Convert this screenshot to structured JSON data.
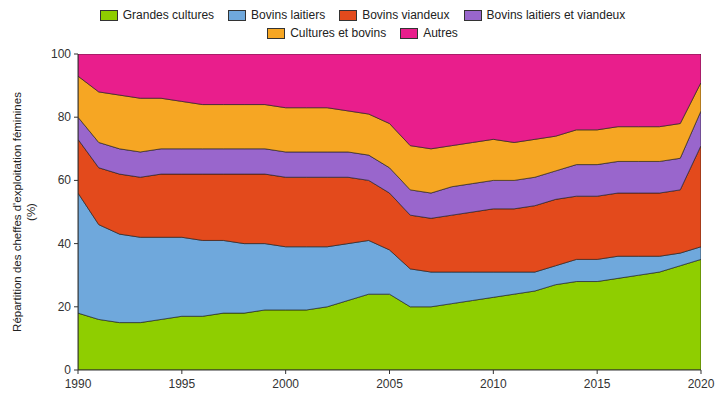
{
  "chart_data": {
    "type": "area",
    "stacked": true,
    "legend": "top",
    "grid": false,
    "ylabel": "Répartition des cheffes d'exploitation féminines\n(%)",
    "x": [
      1990,
      1991,
      1992,
      1993,
      1994,
      1995,
      1996,
      1997,
      1998,
      1999,
      2000,
      2001,
      2002,
      2003,
      2004,
      2005,
      2006,
      2007,
      2008,
      2009,
      2010,
      2011,
      2012,
      2013,
      2014,
      2015,
      2016,
      2017,
      2018,
      2019,
      2020
    ],
    "series": [
      {
        "name": "Grandes cultures",
        "color": "#8fce00",
        "values": [
          18,
          16,
          15,
          15,
          16,
          17,
          17,
          18,
          18,
          19,
          19,
          19,
          20,
          22,
          24,
          24,
          20,
          20,
          21,
          22,
          23,
          24,
          25,
          27,
          28,
          28,
          29,
          30,
          31,
          33,
          35
        ]
      },
      {
        "name": "Bovins laitiers",
        "color": "#6fa8dc",
        "values": [
          38,
          30,
          28,
          27,
          26,
          25,
          24,
          23,
          22,
          21,
          20,
          20,
          19,
          18,
          17,
          14,
          12,
          11,
          10,
          9,
          8,
          7,
          6,
          6,
          7,
          7,
          7,
          6,
          5,
          4,
          4
        ]
      },
      {
        "name": "Bovins viandeux",
        "color": "#e34a1c",
        "values": [
          17,
          18,
          19,
          19,
          20,
          20,
          21,
          21,
          22,
          22,
          22,
          22,
          22,
          21,
          19,
          18,
          17,
          17,
          18,
          19,
          20,
          20,
          21,
          21,
          20,
          20,
          20,
          20,
          20,
          20,
          32
        ]
      },
      {
        "name": "Bovins laitiers et viandeux",
        "color": "#9966cc",
        "values": [
          7,
          8,
          8,
          8,
          8,
          8,
          8,
          8,
          8,
          8,
          8,
          8,
          8,
          8,
          8,
          8,
          8,
          8,
          9,
          9,
          9,
          9,
          9,
          9,
          10,
          10,
          10,
          10,
          10,
          10,
          11
        ]
      },
      {
        "name": "Cultures et bovins",
        "color": "#f6a623",
        "values": [
          13,
          16,
          17,
          17,
          16,
          15,
          14,
          14,
          14,
          14,
          14,
          14,
          14,
          13,
          13,
          14,
          14,
          14,
          13,
          13,
          13,
          12,
          12,
          11,
          11,
          11,
          11,
          11,
          11,
          11,
          9
        ]
      },
      {
        "name": "Autres",
        "color": "#e91e8c",
        "values": [
          7,
          12,
          13,
          14,
          14,
          15,
          16,
          16,
          16,
          16,
          17,
          17,
          17,
          18,
          19,
          22,
          29,
          30,
          29,
          28,
          27,
          28,
          27,
          26,
          24,
          24,
          23,
          23,
          23,
          22,
          9
        ]
      }
    ],
    "xlim": [
      1990,
      2020
    ],
    "ylim": [
      0,
      100
    ],
    "xticks": [
      1990,
      1995,
      2000,
      2005,
      2010,
      2015,
      2020
    ],
    "yticks": [
      0,
      20,
      40,
      60,
      80,
      100
    ]
  }
}
